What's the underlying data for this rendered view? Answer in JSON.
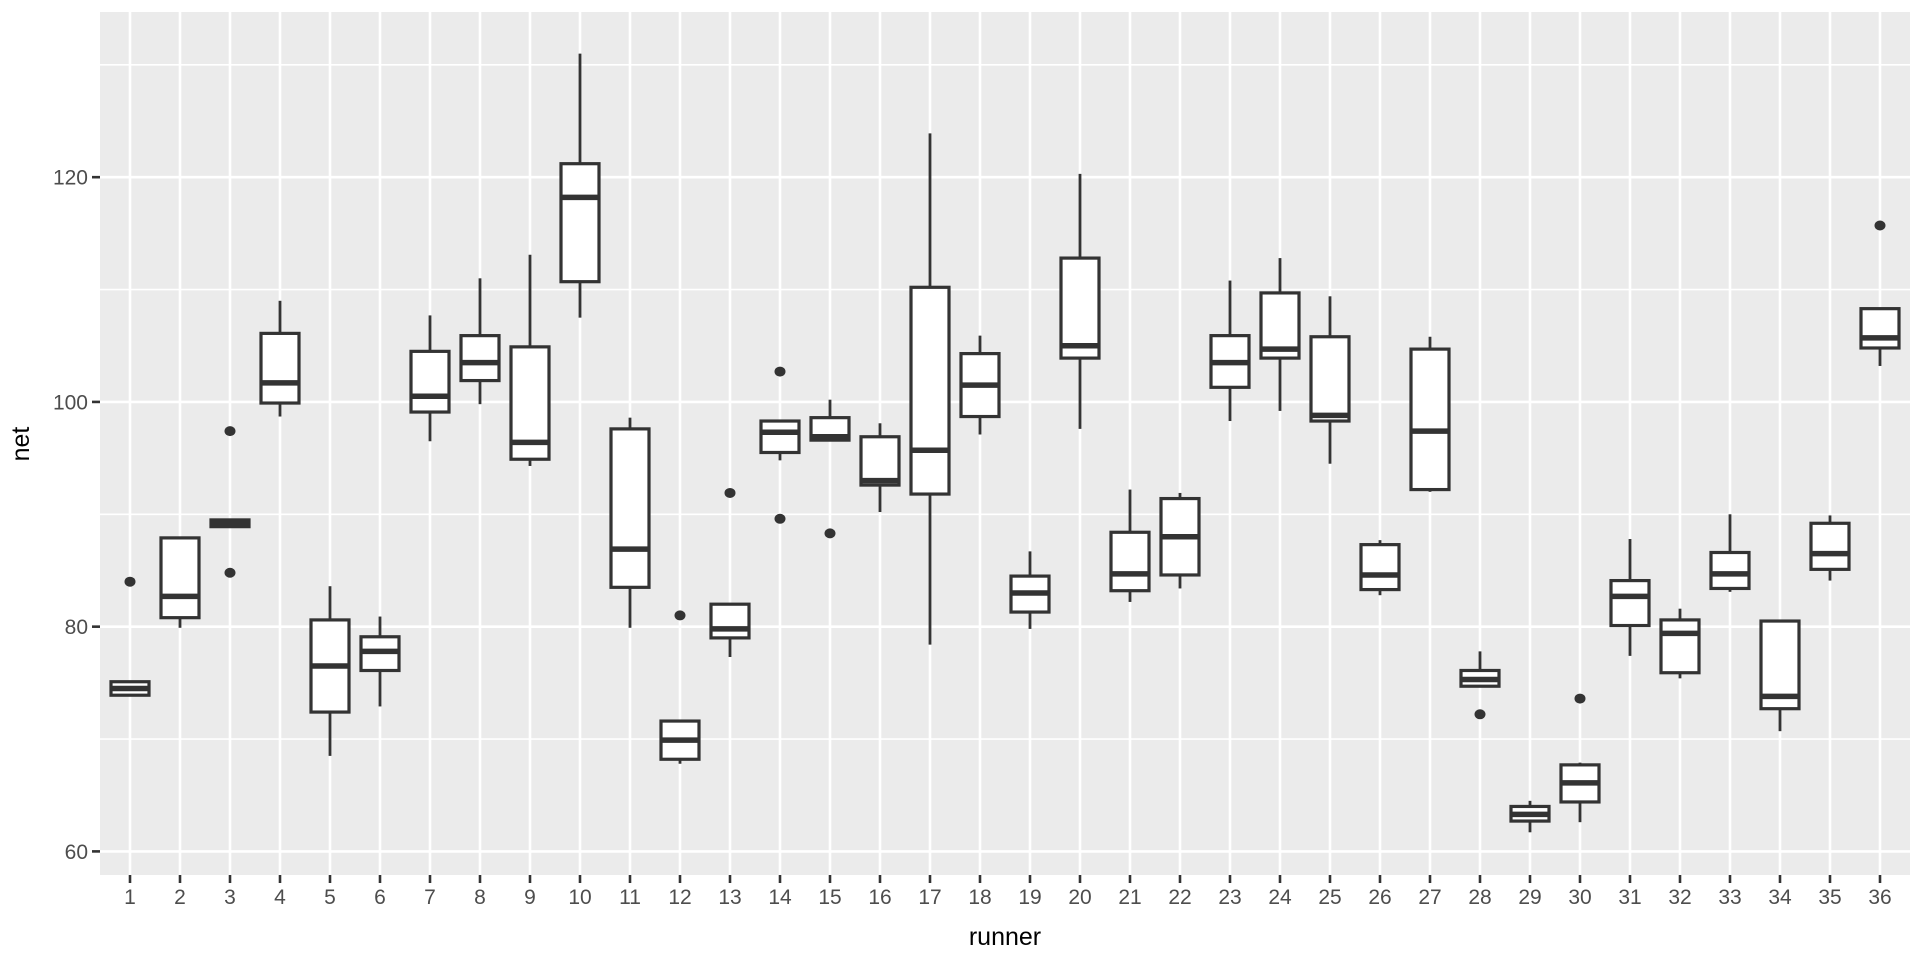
{
  "theme": {
    "panel_bg": "#EBEBEB",
    "grid_color": "#FFFFFF",
    "box_stroke": "#333333",
    "box_fill": "#FFFFFF",
    "outlier_color": "#333333",
    "tick_label_color": "#4D4D4D",
    "tick_mark_color": "#333333",
    "axis_title_color": "#000000"
  },
  "chart_data": {
    "type": "boxplot",
    "title": "",
    "xlabel": "runner",
    "ylabel": "net",
    "ylim": [
      57.9,
      134.7
    ],
    "grid": true,
    "y_major_ticks": [
      60,
      80,
      100,
      120
    ],
    "y_minor_ticks": [
      70,
      90,
      110,
      130
    ],
    "categories": [
      "1",
      "2",
      "3",
      "4",
      "5",
      "6",
      "7",
      "8",
      "9",
      "10",
      "11",
      "12",
      "13",
      "14",
      "15",
      "16",
      "17",
      "18",
      "19",
      "20",
      "21",
      "22",
      "23",
      "24",
      "25",
      "26",
      "27",
      "28",
      "29",
      "30",
      "31",
      "32",
      "33",
      "34",
      "35",
      "36"
    ],
    "series": [
      {
        "x": "1",
        "low": 73.9,
        "q1": 73.9,
        "median": 74.5,
        "q3": 75.1,
        "high": 75.1,
        "outliers": [
          84.0
        ]
      },
      {
        "x": "2",
        "low": 79.9,
        "q1": 80.8,
        "median": 82.7,
        "q3": 87.9,
        "high": 87.9,
        "outliers": []
      },
      {
        "x": "3",
        "low": 88.9,
        "q1": 88.9,
        "median": 89.2,
        "q3": 89.5,
        "high": 89.5,
        "outliers": [
          97.4,
          84.8
        ]
      },
      {
        "x": "4",
        "low": 98.7,
        "q1": 99.9,
        "median": 101.7,
        "q3": 106.1,
        "high": 109.0,
        "outliers": []
      },
      {
        "x": "5",
        "low": 68.5,
        "q1": 72.4,
        "median": 76.5,
        "q3": 80.6,
        "high": 83.6,
        "outliers": []
      },
      {
        "x": "6",
        "low": 72.9,
        "q1": 76.1,
        "median": 77.8,
        "q3": 79.1,
        "high": 80.9,
        "outliers": []
      },
      {
        "x": "7",
        "low": 96.5,
        "q1": 99.1,
        "median": 100.5,
        "q3": 104.5,
        "high": 107.7,
        "outliers": []
      },
      {
        "x": "8",
        "low": 99.8,
        "q1": 101.9,
        "median": 103.5,
        "q3": 105.9,
        "high": 111.0,
        "outliers": []
      },
      {
        "x": "9",
        "low": 94.3,
        "q1": 94.9,
        "median": 96.4,
        "q3": 104.9,
        "high": 113.1,
        "outliers": []
      },
      {
        "x": "10",
        "low": 107.5,
        "q1": 110.7,
        "median": 118.2,
        "q3": 121.2,
        "high": 131.0,
        "outliers": []
      },
      {
        "x": "11",
        "low": 79.9,
        "q1": 83.5,
        "median": 86.9,
        "q3": 97.6,
        "high": 98.6,
        "outliers": []
      },
      {
        "x": "12",
        "low": 67.8,
        "q1": 68.2,
        "median": 69.9,
        "q3": 71.6,
        "high": 71.6,
        "outliers": [
          81.0
        ]
      },
      {
        "x": "13",
        "low": 77.3,
        "q1": 79.0,
        "median": 79.8,
        "q3": 82.0,
        "high": 82.0,
        "outliers": [
          91.9
        ]
      },
      {
        "x": "14",
        "low": 94.8,
        "q1": 95.5,
        "median": 97.3,
        "q3": 98.3,
        "high": 98.3,
        "outliers": [
          102.7,
          89.6
        ]
      },
      {
        "x": "15",
        "low": 96.5,
        "q1": 96.6,
        "median": 96.9,
        "q3": 98.6,
        "high": 100.2,
        "outliers": [
          88.3
        ]
      },
      {
        "x": "16",
        "low": 90.2,
        "q1": 92.6,
        "median": 93.0,
        "q3": 96.9,
        "high": 98.1,
        "outliers": []
      },
      {
        "x": "17",
        "low": 78.4,
        "q1": 91.8,
        "median": 95.7,
        "q3": 110.2,
        "high": 123.9,
        "outliers": []
      },
      {
        "x": "18",
        "low": 97.1,
        "q1": 98.7,
        "median": 101.5,
        "q3": 104.3,
        "high": 105.9,
        "outliers": []
      },
      {
        "x": "19",
        "low": 79.8,
        "q1": 81.3,
        "median": 83.0,
        "q3": 84.5,
        "high": 86.7,
        "outliers": []
      },
      {
        "x": "20",
        "low": 97.6,
        "q1": 103.9,
        "median": 105.0,
        "q3": 112.8,
        "high": 120.3,
        "outliers": []
      },
      {
        "x": "21",
        "low": 82.2,
        "q1": 83.2,
        "median": 84.7,
        "q3": 88.4,
        "high": 92.2,
        "outliers": []
      },
      {
        "x": "22",
        "low": 83.4,
        "q1": 84.6,
        "median": 88.0,
        "q3": 91.4,
        "high": 91.9,
        "outliers": []
      },
      {
        "x": "23",
        "low": 98.3,
        "q1": 101.3,
        "median": 103.5,
        "q3": 105.9,
        "high": 110.8,
        "outliers": []
      },
      {
        "x": "24",
        "low": 99.2,
        "q1": 103.9,
        "median": 104.7,
        "q3": 109.7,
        "high": 112.8,
        "outliers": []
      },
      {
        "x": "25",
        "low": 94.5,
        "q1": 98.3,
        "median": 98.8,
        "q3": 105.8,
        "high": 109.4,
        "outliers": []
      },
      {
        "x": "26",
        "low": 82.8,
        "q1": 83.3,
        "median": 84.6,
        "q3": 87.3,
        "high": 87.7,
        "outliers": []
      },
      {
        "x": "27",
        "low": 92.0,
        "q1": 92.2,
        "median": 97.4,
        "q3": 104.7,
        "high": 105.8,
        "outliers": []
      },
      {
        "x": "28",
        "low": 74.6,
        "q1": 74.7,
        "median": 75.3,
        "q3": 76.1,
        "high": 77.8,
        "outliers": [
          72.2
        ]
      },
      {
        "x": "29",
        "low": 61.7,
        "q1": 62.7,
        "median": 63.3,
        "q3": 64.0,
        "high": 64.5,
        "outliers": []
      },
      {
        "x": "30",
        "low": 62.6,
        "q1": 64.4,
        "median": 66.1,
        "q3": 67.7,
        "high": 67.9,
        "outliers": [
          73.6
        ]
      },
      {
        "x": "31",
        "low": 77.4,
        "q1": 80.1,
        "median": 82.7,
        "q3": 84.1,
        "high": 87.8,
        "outliers": []
      },
      {
        "x": "32",
        "low": 75.4,
        "q1": 75.9,
        "median": 79.4,
        "q3": 80.6,
        "high": 81.6,
        "outliers": []
      },
      {
        "x": "33",
        "low": 83.1,
        "q1": 83.4,
        "median": 84.7,
        "q3": 86.6,
        "high": 90.0,
        "outliers": []
      },
      {
        "x": "34",
        "low": 70.7,
        "q1": 72.7,
        "median": 73.8,
        "q3": 80.5,
        "high": 80.5,
        "outliers": []
      },
      {
        "x": "35",
        "low": 84.1,
        "q1": 85.1,
        "median": 86.5,
        "q3": 89.2,
        "high": 89.9,
        "outliers": []
      },
      {
        "x": "36",
        "low": 103.2,
        "q1": 104.8,
        "median": 105.7,
        "q3": 108.3,
        "high": 108.3,
        "outliers": [
          115.7
        ]
      }
    ]
  }
}
